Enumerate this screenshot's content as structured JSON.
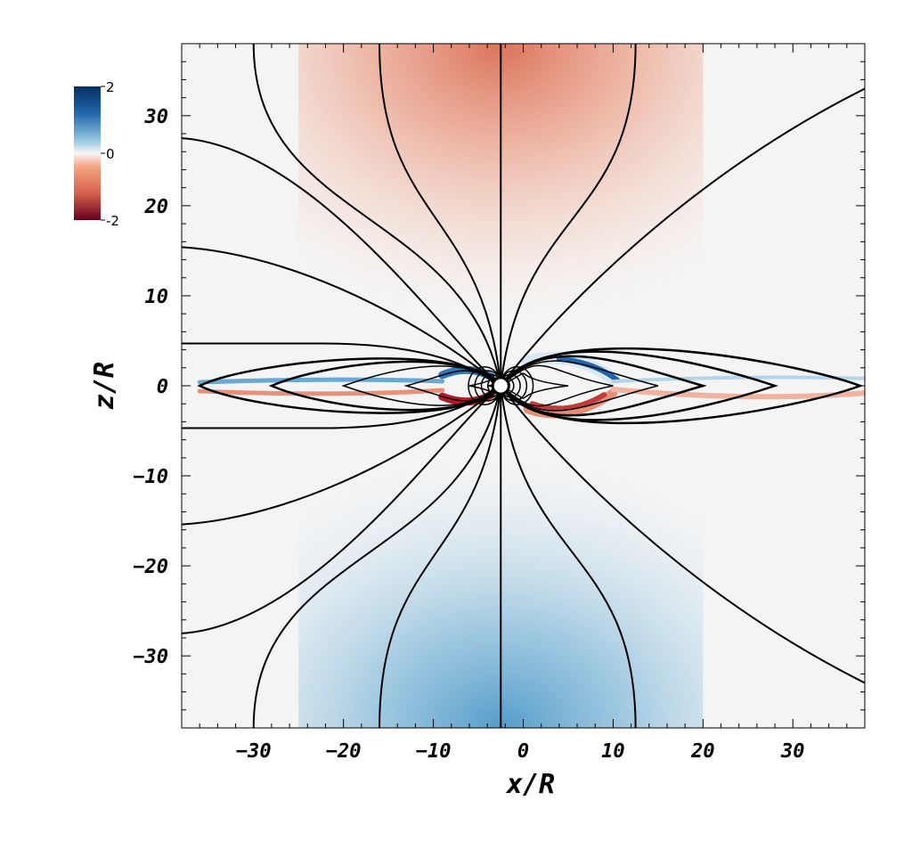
{
  "chart_data": {
    "type": "heatmap",
    "xlabel": "x/R",
    "ylabel": "z/R",
    "xlim": [
      -38,
      38
    ],
    "ylim": [
      -38,
      38
    ],
    "x_ticks": [
      -30,
      -20,
      -10,
      0,
      10,
      20,
      30
    ],
    "y_ticks": [
      30,
      20,
      10,
      0,
      -10,
      -20,
      -30
    ],
    "x_tick_labels": [
      "−30",
      "−20",
      "−10",
      "0",
      "10",
      "20",
      "30"
    ],
    "y_tick_labels": [
      "30",
      "20",
      "10",
      "0",
      "−10",
      "−20",
      "−30"
    ],
    "minor_ticks_per_major": 5,
    "colorbar": {
      "min": -2,
      "max": 2,
      "tick_labels": [
        "2",
        "0",
        "-2"
      ],
      "colormap": "red-white-blue",
      "colors": {
        "low": "#67001f",
        "mid_low": "#d6604d",
        "mid": "#f7f7f7",
        "mid_high": "#4393c3",
        "high": "#053061"
      },
      "placement": "top-left"
    },
    "central_body": {
      "x": -2.5,
      "z": 0,
      "radius": 0.9
    },
    "field_lines": {
      "open_north_footpoints_x": [
        -30,
        -16,
        -2.5,
        12.5
      ],
      "open_south_footpoints_x": [
        -30,
        -16,
        -2.5,
        12.5
      ],
      "left_open_z_at_edge": [
        27.5,
        15.4,
        4.7,
        -4.7,
        -15.4,
        -27.5
      ],
      "right_open_z_at_edge": [
        33,
        -33
      ],
      "closed_loop_extent_left_x": [
        -36,
        -28,
        -20,
        -13,
        -6,
        -4
      ],
      "closed_loop_extent_right_x": [
        38,
        28,
        20,
        15,
        10,
        5
      ]
    },
    "color": {
      "north_lobe": "negative (red)",
      "south_lobe": "positive (blue)",
      "background": "near zero (white)"
    }
  }
}
